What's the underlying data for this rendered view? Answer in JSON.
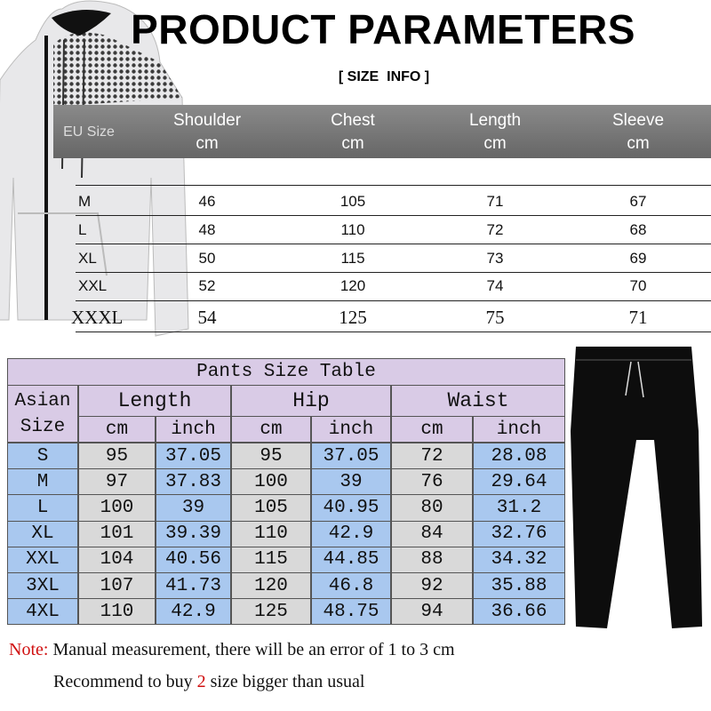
{
  "title": "PRODUCT PARAMETERS",
  "subtitle": "[ SIZE  INFO ]",
  "top_table": {
    "columns": [
      {
        "name": "EU Size"
      },
      {
        "name": "Shoulder",
        "unit": "cm"
      },
      {
        "name": "Chest",
        "unit": "cm"
      },
      {
        "name": "Length",
        "unit": "cm"
      },
      {
        "name": "Sleeve",
        "unit": "cm"
      }
    ],
    "rows": [
      [
        "M",
        "46",
        "105",
        "71",
        "67"
      ],
      [
        "L",
        "48",
        "110",
        "72",
        "68"
      ],
      [
        "XL",
        "50",
        "115",
        "73",
        "69"
      ],
      [
        "XXL",
        "52",
        "120",
        "74",
        "70"
      ],
      [
        "XXXL",
        "54",
        "125",
        "75",
        "71"
      ]
    ]
  },
  "pants_table": {
    "title": "Pants Size Table",
    "size_header": "Asian Size",
    "groups": [
      "Length",
      "Hip",
      "Waist"
    ],
    "units": [
      "cm",
      "inch",
      "cm",
      "inch",
      "cm",
      "inch"
    ],
    "rows": [
      [
        "S",
        "95",
        "37.05",
        "95",
        "37.05",
        "72",
        "28.08"
      ],
      [
        "M",
        "97",
        "37.83",
        "100",
        "39",
        "76",
        "29.64"
      ],
      [
        "L",
        "100",
        "39",
        "105",
        "40.95",
        "80",
        "31.2"
      ],
      [
        "XL",
        "101",
        "39.39",
        "110",
        "42.9",
        "84",
        "32.76"
      ],
      [
        "XXL",
        "104",
        "40.56",
        "115",
        "44.85",
        "88",
        "34.32"
      ],
      [
        "3XL",
        "107",
        "41.73",
        "120",
        "46.8",
        "92",
        "35.88"
      ],
      [
        "4XL",
        "110",
        "42.9",
        "125",
        "48.75",
        "94",
        "36.66"
      ]
    ]
  },
  "note": {
    "label": "Note:",
    "text": " Manual measurement, there will be an error of 1 to 3 cm"
  },
  "recommend": {
    "before": "Recommend to buy ",
    "number": "2",
    "after": " size bigger than usual"
  }
}
